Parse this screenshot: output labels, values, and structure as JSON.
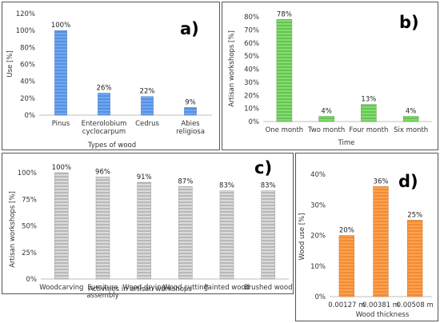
{
  "chart_data": [
    {
      "id": "a",
      "type": "bar",
      "panel_label": "a)",
      "categories": [
        "Pinus",
        "Enterolobium cyclocarpum",
        "Cedrus",
        "Abies religiosa"
      ],
      "category_lines": [
        [
          "Pinus"
        ],
        [
          "Enterolobium",
          "cyclocarpum"
        ],
        [
          "Cedrus"
        ],
        [
          "Abies",
          "religiosa"
        ]
      ],
      "values": [
        100,
        26,
        22,
        9
      ],
      "value_labels": [
        "100%",
        "26%",
        "22%",
        "9%"
      ],
      "xlabel": "Types of wood",
      "ylabel": "Use [%]",
      "ylim": [
        0,
        120
      ],
      "yticks": [
        "0%",
        "20%",
        "40%",
        "60%",
        "80%",
        "100%",
        "120%"
      ],
      "color": "#5b8fd6",
      "grid": false
    },
    {
      "id": "b",
      "type": "bar",
      "panel_label": "b)",
      "categories": [
        "One month",
        "Two month",
        "Four month",
        "Six month"
      ],
      "category_lines": [
        [
          "One month"
        ],
        [
          "Two month"
        ],
        [
          "Four month"
        ],
        [
          "Six month"
        ]
      ],
      "values": [
        78,
        4,
        13,
        4
      ],
      "value_labels": [
        "78%",
        "4%",
        "13%",
        "4%"
      ],
      "xlabel": "Time",
      "ylabel": "Artisan workshops [%]",
      "ylim": [
        0,
        80
      ],
      "yticks": [
        "0%",
        "10%",
        "20%",
        "30%",
        "40%",
        "50%",
        "60%",
        "70%",
        "80%"
      ],
      "color": "#6cbf5a",
      "grid": false
    },
    {
      "id": "c",
      "type": "bar",
      "panel_label": "c)",
      "categories": [
        "Woodcarving",
        "Furniture assembly",
        "Wood drying",
        "Wood cutting",
        "Painted wood",
        "Brushed wood"
      ],
      "category_lines": [
        [
          "Woodcarving"
        ],
        [
          "Furniture",
          "assembly"
        ],
        [
          "Wood drying"
        ],
        [
          "Wood cutting"
        ],
        [
          "Painted wood"
        ],
        [
          "Brushed wood"
        ]
      ],
      "values": [
        100,
        96,
        91,
        87,
        83,
        83
      ],
      "value_labels": [
        "100%",
        "96%",
        "91%",
        "87%",
        "83%",
        "83%"
      ],
      "xlabel": "Activities in artisan workshops",
      "ylabel": "Artisan workshops [%]",
      "ylim": [
        0,
        100
      ],
      "yticks": [
        "0%",
        "25%",
        "50%",
        "75%",
        "100%"
      ],
      "color": "#b9b9b9",
      "grid": false
    },
    {
      "id": "d",
      "type": "bar",
      "panel_label": "d)",
      "categories": [
        "0.00127 m",
        "0.00381 m",
        "0.00508 m"
      ],
      "category_lines": [
        [
          "0.00127 m"
        ],
        [
          "0.00381 m"
        ],
        [
          "0.00508 m"
        ]
      ],
      "values": [
        20,
        36,
        25
      ],
      "value_labels": [
        "20%",
        "36%",
        "25%"
      ],
      "xlabel": "Wood thickness",
      "ylabel": "Wood use [%]",
      "ylim": [
        0,
        40
      ],
      "yticks": [
        "0%",
        "10%",
        "20%",
        "30%",
        "40%"
      ],
      "color": "#f08a3c",
      "grid": false
    }
  ]
}
